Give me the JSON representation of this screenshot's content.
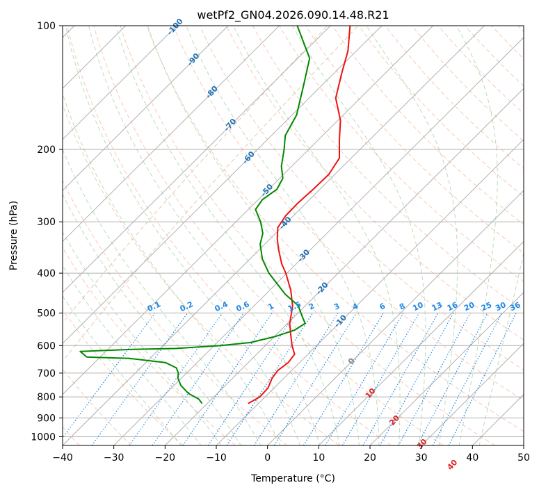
{
  "chart_data": {
    "type": "line",
    "title": "wetPf2_GN04.2026.090.14.48.R21",
    "xlabel": "Temperature (°C)",
    "ylabel": "Pressure (hPa)",
    "xlim": [
      -40,
      50
    ],
    "ylim": [
      1050,
      100
    ],
    "x_tick_labels": [
      "−40",
      "−30",
      "−20",
      "−10",
      "0",
      "10",
      "20",
      "30",
      "40",
      "50"
    ],
    "y_tick_labels": [
      "100",
      "200",
      "300",
      "400",
      "500",
      "600",
      "700",
      "800",
      "900",
      "1000"
    ],
    "series": [
      {
        "name": "temperature",
        "color": "#ee1111",
        "points": [
          {
            "p": 830,
            "t": -12.0
          },
          {
            "p": 800,
            "t": -11.0
          },
          {
            "p": 760,
            "t": -11.2
          },
          {
            "p": 720,
            "t": -12.3
          },
          {
            "p": 690,
            "t": -12.7
          },
          {
            "p": 660,
            "t": -12.2
          },
          {
            "p": 630,
            "t": -12.6
          },
          {
            "p": 600,
            "t": -14.8
          },
          {
            "p": 560,
            "t": -17.5
          },
          {
            "p": 530,
            "t": -19.6
          },
          {
            "p": 500,
            "t": -21.3
          },
          {
            "p": 480,
            "t": -22.5
          },
          {
            "p": 440,
            "t": -25.9
          },
          {
            "p": 400,
            "t": -30.2
          },
          {
            "p": 380,
            "t": -32.8
          },
          {
            "p": 350,
            "t": -36.3
          },
          {
            "p": 330,
            "t": -38.6
          },
          {
            "p": 310,
            "t": -40.7
          },
          {
            "p": 290,
            "t": -41.5
          },
          {
            "p": 270,
            "t": -41.6
          },
          {
            "p": 250,
            "t": -41.3
          },
          {
            "p": 230,
            "t": -41.2
          },
          {
            "p": 210,
            "t": -42.3
          },
          {
            "p": 190,
            "t": -45.8
          },
          {
            "p": 170,
            "t": -49.5
          },
          {
            "p": 150,
            "t": -54.8
          },
          {
            "p": 130,
            "t": -58.6
          },
          {
            "p": 115,
            "t": -61.7
          },
          {
            "p": 100,
            "t": -66.2
          }
        ]
      },
      {
        "name": "dewpoint",
        "color": "#008800",
        "points": [
          {
            "p": 830,
            "t": -21.0
          },
          {
            "p": 810,
            "t": -22.5
          },
          {
            "p": 785,
            "t": -25.6
          },
          {
            "p": 750,
            "t": -28.7
          },
          {
            "p": 720,
            "t": -30.7
          },
          {
            "p": 700,
            "t": -31.6
          },
          {
            "p": 680,
            "t": -33.0
          },
          {
            "p": 660,
            "t": -36.2
          },
          {
            "p": 645,
            "t": -44.0
          },
          {
            "p": 640,
            "t": -52.6
          },
          {
            "p": 620,
            "t": -55.0
          },
          {
            "p": 613,
            "t": -45.2
          },
          {
            "p": 610,
            "t": -37.0
          },
          {
            "p": 600,
            "t": -28.7
          },
          {
            "p": 590,
            "t": -23.5
          },
          {
            "p": 570,
            "t": -19.8
          },
          {
            "p": 550,
            "t": -17.3
          },
          {
            "p": 530,
            "t": -16.6
          },
          {
            "p": 510,
            "t": -18.5
          },
          {
            "p": 480,
            "t": -21.4
          },
          {
            "p": 450,
            "t": -26.2
          },
          {
            "p": 400,
            "t": -33.5
          },
          {
            "p": 370,
            "t": -37.5
          },
          {
            "p": 340,
            "t": -40.9
          },
          {
            "p": 320,
            "t": -42.5
          },
          {
            "p": 300,
            "t": -45.2
          },
          {
            "p": 280,
            "t": -48.6
          },
          {
            "p": 265,
            "t": -49.2
          },
          {
            "p": 250,
            "t": -48.4
          },
          {
            "p": 235,
            "t": -49.4
          },
          {
            "p": 220,
            "t": -52.0
          },
          {
            "p": 200,
            "t": -54.8
          },
          {
            "p": 185,
            "t": -57.3
          },
          {
            "p": 165,
            "t": -59.1
          },
          {
            "p": 140,
            "t": -63.5
          },
          {
            "p": 120,
            "t": -67.7
          },
          {
            "p": 100,
            "t": -76.5
          }
        ]
      }
    ],
    "isotherm_labels": [
      "-100",
      "-90",
      "-80",
      "-70",
      "-60",
      "-50",
      "-40",
      "-30",
      "-20",
      "-10",
      "0",
      "10",
      "20",
      "30",
      "40"
    ],
    "mixing_ratio_labels": [
      "0.1",
      "0.2",
      "0.4",
      "0.6",
      "1",
      "1.5",
      "2",
      "3",
      "4",
      "6",
      "8",
      "10",
      "13",
      "16",
      "20",
      "25",
      "30",
      "36"
    ],
    "colors": {
      "isotherm_line": "#b0b0b0",
      "isotherm_label_cold": "#1f6fb4",
      "isotherm_label_zero": "#808080",
      "isotherm_label_warm": "#dd2222",
      "dry_adiabat": "#f4a582",
      "moist_adiabat": "#7fbf7f",
      "mixing_ratio": "#1e88e5",
      "theta_e": "#c8a070"
    }
  }
}
